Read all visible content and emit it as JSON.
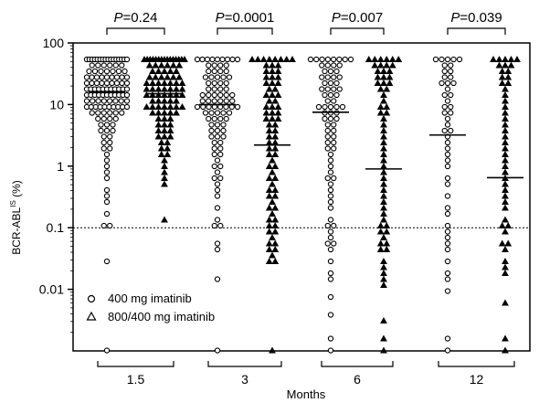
{
  "chart_data": {
    "type": "scatter",
    "yscale": "log",
    "ylim": [
      0.001,
      100
    ],
    "yticks": [
      "0.01",
      "0.1",
      "1",
      "10",
      "100"
    ],
    "ylabel": "BCR-ABL",
    "ylabel_sup": "IS",
    "ylabel_suffix": " (%)",
    "xlabel": "Months",
    "categories": [
      "1.5",
      "3",
      "6",
      "12"
    ],
    "reference_line": 0.1,
    "series": [
      {
        "name": "400 mg imatinib",
        "marker": "circle",
        "medians": [
          16,
          10,
          7.5,
          3.2
        ],
        "points": [
          [
            50,
            50,
            50,
            50,
            50,
            50,
            50,
            50,
            50,
            50,
            50,
            50,
            50,
            50,
            50,
            50,
            45,
            45,
            45,
            40,
            40,
            40,
            38,
            38,
            35,
            35,
            35,
            32,
            32,
            30,
            30,
            28,
            28,
            28,
            26,
            26,
            25,
            25,
            24,
            24,
            22,
            22,
            22,
            21,
            20,
            20,
            20,
            19,
            19,
            18,
            18,
            18,
            17,
            17,
            17,
            16,
            16,
            16,
            15,
            15,
            15,
            15,
            14,
            14,
            14,
            13,
            13,
            13,
            13,
            12,
            12,
            12,
            12,
            11,
            11,
            11,
            11,
            10,
            10,
            10,
            10,
            9.5,
            9.5,
            9,
            9,
            8.5,
            8.5,
            8,
            8,
            8,
            7.5,
            7,
            7,
            6.5,
            6,
            6,
            5.5,
            5,
            5,
            4.5,
            4,
            4,
            3.5,
            3,
            3,
            2.5,
            2.2,
            2,
            1.8,
            1.5,
            1.2,
            1,
            0.8,
            0.6,
            0.45,
            0.35,
            0.25,
            0.18,
            0.1,
            0.1,
            0.027,
            0.001
          ],
          [
            50,
            50,
            50,
            50,
            50,
            50,
            50,
            50,
            50,
            48,
            45,
            42,
            40,
            38,
            36,
            34,
            32,
            30,
            30,
            28,
            26,
            25,
            24,
            22,
            20,
            20,
            19,
            18,
            17,
            16,
            15,
            15,
            14,
            14,
            13,
            13,
            12,
            12,
            12,
            11,
            11,
            11,
            10,
            10,
            10,
            10,
            9.5,
            9,
            9,
            8.5,
            8,
            8,
            7.5,
            7,
            7,
            6.5,
            6,
            6,
            5.5,
            5,
            5,
            4.5,
            4,
            4,
            3.5,
            3,
            3,
            2.8,
            2.5,
            2.2,
            2,
            1.8,
            1.6,
            1.4,
            1.2,
            1,
            0.9,
            0.8,
            0.7,
            0.6,
            0.5,
            0.4,
            0.3,
            0.2,
            0.15,
            0.1,
            0.1,
            0.045,
            0.06,
            0.015,
            0.001
          ],
          [
            50,
            50,
            50,
            50,
            50,
            50,
            50,
            50,
            48,
            45,
            42,
            40,
            38,
            35,
            32,
            30,
            28,
            26,
            25,
            24,
            22,
            20,
            19,
            18,
            17,
            16,
            15,
            14,
            13,
            12,
            11,
            10,
            10,
            9.5,
            9,
            8.5,
            8,
            7.5,
            7,
            6.5,
            6,
            5.5,
            5,
            4.5,
            4,
            3.5,
            3,
            2.8,
            2.5,
            2.2,
            2,
            1.8,
            1.5,
            1.2,
            1,
            0.8,
            0.7,
            0.6,
            0.5,
            0.4,
            0.3,
            0.25,
            0.2,
            0.15,
            0.12,
            0.1,
            0.08,
            0.07,
            0.06,
            0.05,
            0.04,
            0.03,
            0.02,
            0.015,
            0.008,
            0.004,
            0.0015,
            0.001
          ],
          [
            50,
            50,
            50,
            50,
            50,
            45,
            42,
            38,
            35,
            30,
            26,
            24,
            22,
            20,
            17,
            15,
            13,
            11,
            10,
            9,
            8,
            7,
            6,
            5,
            4,
            3.5,
            3,
            2.5,
            2,
            1.6,
            1.2,
            0.9,
            0.7,
            0.5,
            0.35,
            0.22,
            0.18,
            0.12,
            0.09,
            0.07,
            0.05,
            0.04,
            0.03,
            0.02,
            0.015,
            0.01,
            0.0015,
            0.001
          ]
        ]
      },
      {
        "name": "800/400 mg imatinib",
        "marker": "triangle",
        "medians": [
          15,
          2.2,
          0.9,
          0.65
        ],
        "points": [
          [
            50,
            50,
            50,
            50,
            50,
            50,
            50,
            50,
            50,
            50,
            50,
            50,
            50,
            50,
            50,
            48,
            45,
            45,
            42,
            40,
            40,
            38,
            36,
            35,
            34,
            32,
            30,
            30,
            28,
            28,
            26,
            25,
            24,
            24,
            22,
            22,
            21,
            20,
            20,
            19,
            18,
            18,
            17,
            17,
            16,
            16,
            15,
            15,
            15,
            14,
            14,
            13,
            13,
            12,
            12,
            12,
            11,
            11,
            10,
            10,
            10,
            9.5,
            9,
            9,
            8.5,
            8,
            8,
            7.5,
            7,
            7,
            6.5,
            6,
            5.5,
            5,
            5,
            4.5,
            4,
            3.5,
            3.5,
            3,
            3,
            2.8,
            2.5,
            2.2,
            2,
            1.8,
            1.6,
            1.4,
            1.2,
            1,
            0.8,
            0.6,
            0.5,
            0.13
          ],
          [
            50,
            50,
            50,
            50,
            50,
            50,
            50,
            50,
            45,
            42,
            40,
            38,
            35,
            32,
            30,
            28,
            26,
            24,
            22,
            20,
            18,
            16,
            15,
            14,
            13,
            12,
            11,
            10,
            9,
            8.5,
            8,
            7.5,
            7,
            6.5,
            6,
            5.5,
            5,
            4.5,
            4,
            3.5,
            3,
            2.8,
            2.5,
            2.2,
            2,
            1.8,
            1.6,
            1.4,
            1.2,
            1,
            0.9,
            0.8,
            0.7,
            0.6,
            0.5,
            0.45,
            0.4,
            0.35,
            0.3,
            0.26,
            0.22,
            0.2,
            0.18,
            0.15,
            0.13,
            0.11,
            0.1,
            0.09,
            0.08,
            0.07,
            0.06,
            0.05,
            0.045,
            0.04,
            0.035,
            0.03,
            0.028,
            0.001
          ],
          [
            50,
            50,
            50,
            50,
            50,
            50,
            48,
            45,
            42,
            40,
            38,
            35,
            32,
            30,
            28,
            26,
            24,
            22,
            20,
            18,
            16,
            14,
            12,
            10,
            9,
            8,
            7,
            6,
            5,
            4,
            3,
            2.5,
            2,
            1.5,
            1.2,
            1,
            0.8,
            0.6,
            0.5,
            0.4,
            0.3,
            0.25,
            0.2,
            0.18,
            0.15,
            0.12,
            0.1,
            0.09,
            0.08,
            0.07,
            0.06,
            0.05,
            0.045,
            0.04,
            0.03,
            0.025,
            0.02,
            0.015,
            0.012,
            0.0028,
            0.0015,
            0.001
          ],
          [
            50,
            50,
            50,
            50,
            50,
            45,
            42,
            40,
            36,
            32,
            28,
            25,
            22,
            20,
            18,
            15,
            12,
            10,
            8,
            6,
            5,
            4,
            3,
            2.5,
            2,
            1.5,
            1.2,
            1,
            0.8,
            0.6,
            0.5,
            0.4,
            0.3,
            0.25,
            0.2,
            0.15,
            0.12,
            0.1,
            0.08,
            0.06,
            0.05,
            0.04,
            0.03,
            0.025,
            0.02,
            0.006,
            0.0015,
            0.001
          ]
        ]
      }
    ],
    "comparisons": [
      {
        "label": "P=0.24"
      },
      {
        "label": "P=0.0001"
      },
      {
        "label": "P=0.007"
      },
      {
        "label": "P=0.039"
      }
    ],
    "legend_position": "bottom-left"
  }
}
